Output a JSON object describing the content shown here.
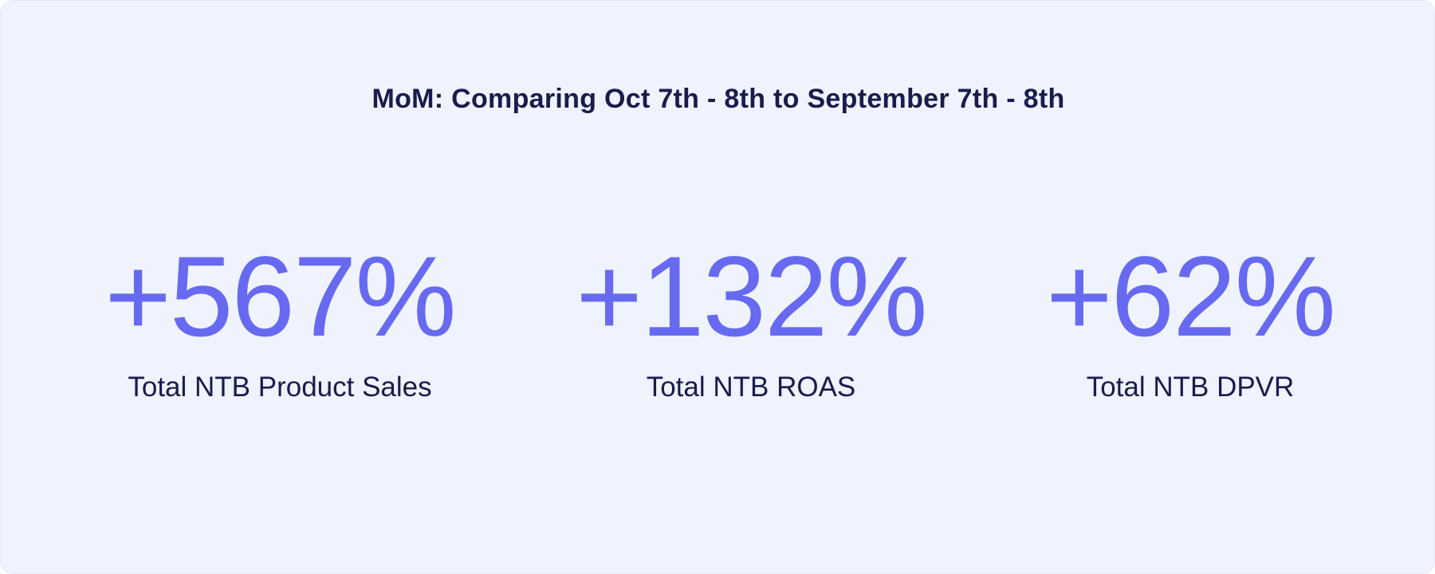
{
  "header": {
    "title": "MoM: Comparing Oct 7th - 8th to September 7th - 8th"
  },
  "metrics": [
    {
      "value": "+567%",
      "label": "Total NTB Product Sales"
    },
    {
      "value": "+132%",
      "label": "Total NTB ROAS"
    },
    {
      "value": "+62%",
      "label": "Total NTB DPVR"
    }
  ]
}
